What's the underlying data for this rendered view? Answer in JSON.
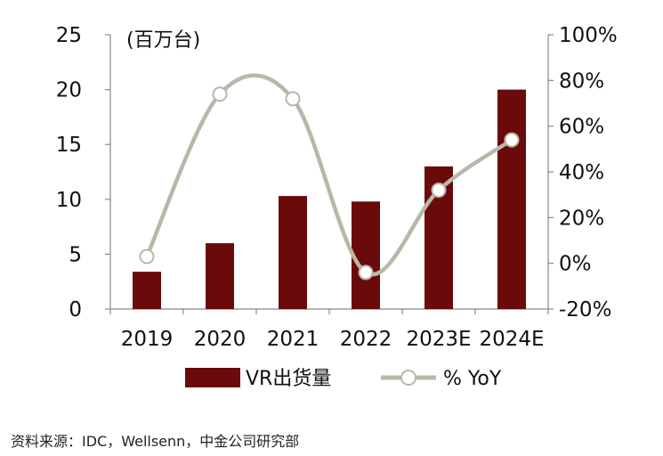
{
  "chart_data": {
    "type": "bar",
    "unit_label": "(百万台)",
    "categories": [
      "2019",
      "2020",
      "2021",
      "2022",
      "2023E",
      "2024E"
    ],
    "series": [
      {
        "name": "VR出货量",
        "type": "bar",
        "axis": "left",
        "color": "#6b0a0a",
        "values": [
          3.4,
          6.0,
          10.3,
          9.8,
          13.0,
          20.0
        ]
      },
      {
        "name": "% YoY",
        "type": "line",
        "axis": "right",
        "color": "#b8b8a8",
        "values": [
          3,
          74,
          72,
          -4,
          32,
          54
        ]
      }
    ],
    "ylim_left": [
      0,
      25
    ],
    "yticks_left": [
      "0",
      "5",
      "10",
      "15",
      "20",
      "25"
    ],
    "ylim_right": [
      -20,
      100
    ],
    "yticks_right": [
      "-20%",
      "0%",
      "20%",
      "40%",
      "60%",
      "80%",
      "100%"
    ],
    "legend_position": "bottom",
    "grid": false
  },
  "source_text": "资料来源：IDC，Wellsenn，中金公司研究部"
}
